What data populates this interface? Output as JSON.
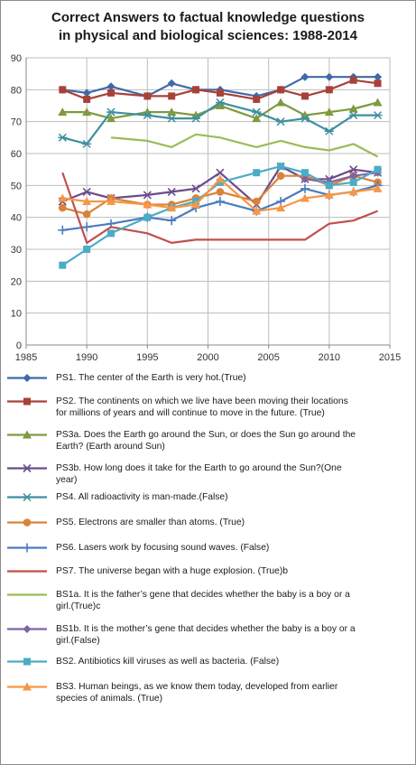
{
  "chart_data": {
    "type": "line",
    "title_lines": [
      "Correct Answers to factual knowledge questions",
      "in physical and biological sciences: 1988-2014"
    ],
    "xlabel": "",
    "ylabel": "",
    "xlim": [
      1985,
      2015
    ],
    "ylim": [
      0,
      90
    ],
    "xticks": [
      1985,
      1990,
      1995,
      2000,
      2005,
      2010,
      2015
    ],
    "yticks": [
      0,
      10,
      20,
      30,
      40,
      50,
      60,
      70,
      80,
      90
    ],
    "grid": true,
    "legend_position": "bottom",
    "series": [
      {
        "legend_lines": [
          "PS1. The center of the Earth is very hot.(True)"
        ],
        "color": "#3f6aa8",
        "marker": "diamond",
        "x": [
          1988,
          1990,
          1992,
          1995,
          1997,
          1999,
          2001,
          2004,
          2006,
          2008,
          2010,
          2012,
          2014
        ],
        "y": [
          80,
          79,
          81,
          78,
          82,
          80,
          80,
          78,
          80,
          84,
          84,
          84,
          84
        ]
      },
      {
        "legend_lines": [
          "PS2. The continents on which we live have been moving their locations",
          "for millions of years and will continue to move in the future. (True)"
        ],
        "color": "#a8413a",
        "marker": "square",
        "x": [
          1988,
          1990,
          1992,
          1995,
          1997,
          1999,
          2001,
          2004,
          2006,
          2008,
          2010,
          2012,
          2014
        ],
        "y": [
          80,
          77,
          79,
          78,
          78,
          80,
          79,
          77,
          80,
          78,
          80,
          83,
          82
        ]
      },
      {
        "legend_lines": [
          "PS3a. Does the Earth go around the Sun, or does the Sun go around the",
          "Earth? (Earth around Sun)"
        ],
        "color": "#7f9a3f",
        "marker": "triangle",
        "x": [
          1988,
          1990,
          1992,
          1995,
          1997,
          1999,
          2001,
          2004,
          2006,
          2008,
          2010,
          2012,
          2014
        ],
        "y": [
          73,
          73,
          71,
          73,
          73,
          72,
          75,
          71,
          76,
          72,
          73,
          74,
          76
        ]
      },
      {
        "legend_lines": [
          "PS3b. How long does it take for the Earth to go around the Sun?(One",
          "year)"
        ],
        "color": "#6b4c8c",
        "marker": "x",
        "x": [
          1988,
          1990,
          1992,
          1995,
          1997,
          1999,
          2001,
          2004,
          2006,
          2008,
          2010,
          2012,
          2014
        ],
        "y": [
          45,
          48,
          46,
          47,
          48,
          49,
          54,
          44,
          56,
          52,
          52,
          55,
          54
        ]
      },
      {
        "legend_lines": [
          "PS4. All radioactivity is man-made.(False)"
        ],
        "color": "#3f8fa0",
        "marker": "star",
        "x": [
          1988,
          1990,
          1992,
          1995,
          1997,
          1999,
          2001,
          2004,
          2006,
          2008,
          2010,
          2012,
          2014
        ],
        "y": [
          65,
          63,
          73,
          72,
          71,
          71,
          76,
          73,
          70,
          71,
          67,
          72,
          72
        ]
      },
      {
        "legend_lines": [
          "PS5. Electrons are smaller than atoms. (True)"
        ],
        "color": "#d9833a",
        "marker": "circle",
        "x": [
          1988,
          1990,
          1992,
          1995,
          1997,
          1999,
          2001,
          2004,
          2006,
          2008,
          2010,
          2012,
          2014
        ],
        "y": [
          43,
          41,
          46,
          44,
          44,
          46,
          48,
          45,
          53,
          53,
          50,
          53,
          51
        ]
      },
      {
        "legend_lines": [
          "PS6. Lasers work by focusing sound waves. (False)"
        ],
        "color": "#4a7cc0",
        "marker": "plus",
        "x": [
          1988,
          1990,
          1992,
          1995,
          1997,
          1999,
          2001,
          2004,
          2006,
          2008,
          2010,
          2012,
          2014
        ],
        "y": [
          36,
          37,
          38,
          40,
          39,
          43,
          45,
          42,
          45,
          49,
          47,
          48,
          50
        ]
      },
      {
        "legend_lines": [
          "PS7. The universe began with a huge explosion. (True)b"
        ],
        "color": "#c0504d",
        "marker": "none",
        "x": [
          1988,
          1990,
          1992,
          1995,
          1997,
          1999,
          2001,
          2004,
          2006,
          2008,
          2010,
          2012,
          2014
        ],
        "y": [
          54,
          32,
          37,
          35,
          32,
          33,
          33,
          33,
          33,
          33,
          38,
          39,
          42
        ]
      },
      {
        "legend_lines": [
          "BS1a. It is the father’s gene that decides whether the baby is a boy or a",
          "girl.(True)c"
        ],
        "color": "#9bbb59",
        "marker": "none",
        "x": [
          1992,
          1995,
          1997,
          1999,
          2001,
          2004,
          2006,
          2008,
          2010,
          2012,
          2014
        ],
        "y": [
          65,
          64,
          62,
          66,
          65,
          62,
          64,
          62,
          61,
          63,
          59
        ]
      },
      {
        "legend_lines": [
          "BS1b. It is the mother’s gene that decides whether the baby is a boy or a",
          "girl.(False)"
        ],
        "color": "#8064a2",
        "marker": "diamond",
        "x": [
          2008,
          2010,
          2012,
          2014
        ],
        "y": [
          52,
          51,
          53,
          54
        ]
      },
      {
        "legend_lines": [
          "BS2. Antibiotics kill viruses as well as bacteria. (False)"
        ],
        "color": "#4bacc6",
        "marker": "square",
        "x": [
          1988,
          1990,
          1992,
          1995,
          1997,
          1999,
          2001,
          2004,
          2006,
          2008,
          2010,
          2012,
          2014
        ],
        "y": [
          25,
          30,
          35,
          40,
          43,
          45,
          51,
          54,
          56,
          54,
          50,
          51,
          55
        ]
      },
      {
        "legend_lines": [
          "BS3. Human beings, as we know them today, developed from earlier",
          "species of animals. (True)"
        ],
        "color": "#f79646",
        "marker": "triangle",
        "x": [
          1988,
          1990,
          1992,
          1995,
          1997,
          1999,
          2001,
          2004,
          2006,
          2008,
          2010,
          2012,
          2014
        ],
        "y": [
          46,
          45,
          45,
          44,
          43,
          44,
          52,
          42,
          43,
          46,
          47,
          48,
          49
        ]
      }
    ]
  }
}
